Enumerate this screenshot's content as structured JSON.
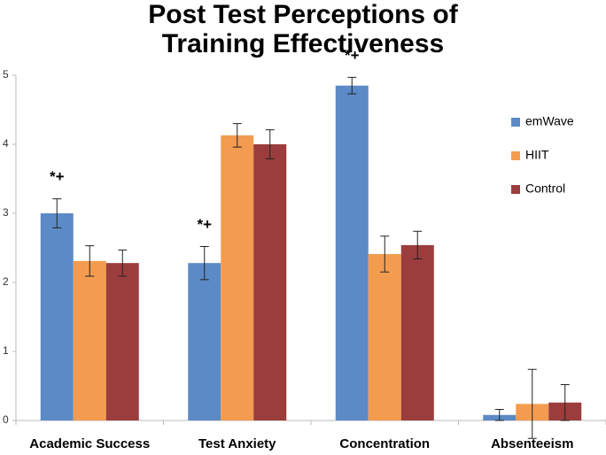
{
  "chart_data": {
    "type": "bar",
    "title": [
      "Post Test Perceptions of",
      "Training Effectiveness"
    ],
    "categories": [
      "Academic Success",
      "Test Anxiety",
      "Concentration",
      "Absenteeism"
    ],
    "series": [
      {
        "name": "emWave",
        "color": "#5b8ac6",
        "values": [
          3.0,
          2.28,
          4.85,
          0.08
        ],
        "errors": [
          0.21,
          0.24,
          0.12,
          0.08
        ],
        "annotations": [
          "*+",
          "*+",
          "*+",
          null
        ]
      },
      {
        "name": "HIIT",
        "color": "#f39c50",
        "values": [
          2.31,
          4.13,
          2.41,
          0.24
        ],
        "errors": [
          0.22,
          0.17,
          0.26,
          0.5
        ]
      },
      {
        "name": "Control",
        "color": "#9c3d3d",
        "values": [
          2.28,
          4.0,
          2.54,
          0.26
        ],
        "errors": [
          0.19,
          0.21,
          0.2,
          0.26
        ]
      }
    ],
    "ylim": [
      0,
      5
    ],
    "yticks": [
      0,
      1,
      2,
      3,
      4,
      5
    ],
    "grid": false,
    "legend": "upper right"
  }
}
